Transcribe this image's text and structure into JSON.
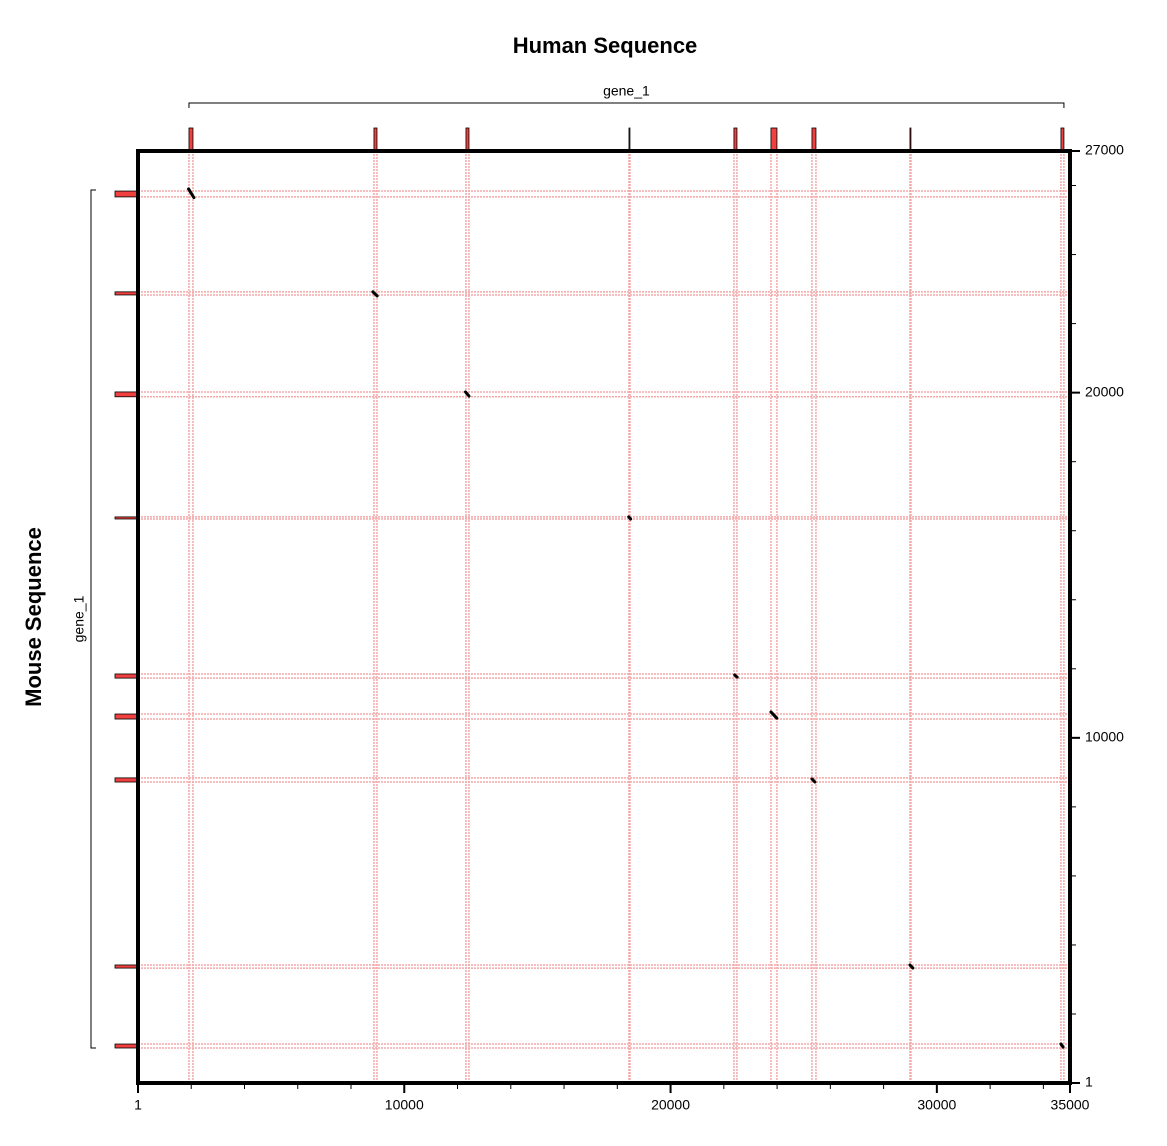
{
  "chart_data": {
    "type": "dotplot",
    "title": "Human Sequence",
    "ylabel": "Mouse Sequence",
    "xlim": [
      1,
      35000
    ],
    "ylim": [
      1,
      27000
    ],
    "xticks": [
      1,
      10000,
      20000,
      30000,
      35000
    ],
    "yticks": [
      1,
      10000,
      20000,
      27000
    ],
    "xminorticks": [
      2000,
      4000,
      6000,
      8000,
      12000,
      14000,
      16000,
      18000,
      22000,
      24000,
      26000,
      28000,
      32000,
      34000
    ],
    "yminorticks": [
      2000,
      4000,
      6000,
      8000,
      12000,
      14000,
      16000,
      18000,
      22000,
      24000,
      26000
    ],
    "human_genes": [
      {
        "name": "gene_1",
        "start": 1915,
        "end": 34772
      }
    ],
    "mouse_genes": [
      {
        "name": "gene_1",
        "start": 1015,
        "end": 25870
      }
    ],
    "human_features": [
      [
        1915,
        2065
      ],
      [
        8862,
        8975
      ],
      [
        12317,
        12430
      ],
      [
        18438,
        18475
      ],
      [
        22380,
        22493
      ],
      [
        23770,
        23995
      ],
      [
        25310,
        25460
      ],
      [
        28990,
        29027
      ],
      [
        34660,
        34772
      ]
    ],
    "mouse_features": [
      [
        25670,
        25840
      ],
      [
        22830,
        22920
      ],
      [
        19880,
        20020
      ],
      [
        16340,
        16400
      ],
      [
        11730,
        11850
      ],
      [
        10545,
        10690
      ],
      [
        8720,
        8840
      ],
      [
        3330,
        3420
      ],
      [
        1015,
        1130
      ]
    ],
    "feature_color": "#f04040",
    "grid_color": "#f4a8a8",
    "match_color": "#000000",
    "matches": [
      {
        "x": [
          1900,
          2100
        ],
        "y": [
          25900,
          25650
        ]
      },
      {
        "x": [
          8820,
          8980
        ],
        "y": [
          22920,
          22800
        ]
      },
      {
        "x": [
          12300,
          12430
        ],
        "y": [
          20020,
          19900
        ]
      },
      {
        "x": [
          18430,
          18500
        ],
        "y": [
          16400,
          16340
        ]
      },
      {
        "x": [
          22410,
          22500
        ],
        "y": [
          11820,
          11760
        ]
      },
      {
        "x": [
          23770,
          23990
        ],
        "y": [
          10750,
          10570
        ]
      },
      {
        "x": [
          25310,
          25420
        ],
        "y": [
          8810,
          8720
        ]
      },
      {
        "x": [
          28990,
          29100
        ],
        "y": [
          3420,
          3330
        ]
      },
      {
        "x": [
          34660,
          34740
        ],
        "y": [
          1130,
          1040
        ]
      }
    ]
  }
}
